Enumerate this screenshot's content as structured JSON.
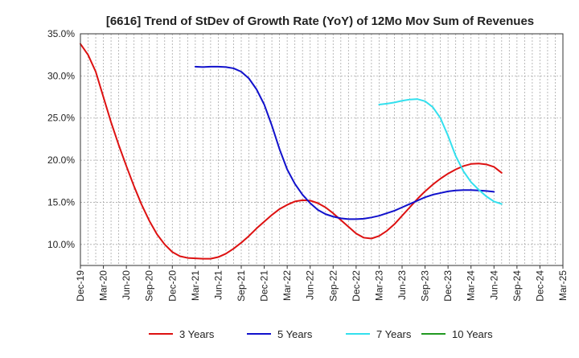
{
  "chart_data": {
    "type": "line",
    "title": "[6616]  Trend of StDev of Growth Rate (YoY) of 12Mo Mov Sum of Revenues",
    "xlabel": "",
    "ylabel": "",
    "ylim": [
      7.5,
      35.0
    ],
    "y_ticks": [
      10.0,
      15.0,
      20.0,
      25.0,
      30.0,
      35.0
    ],
    "y_tick_labels": [
      "10.0%",
      "15.0%",
      "20.0%",
      "25.0%",
      "30.0%",
      "35.0%"
    ],
    "x_tick_labels": [
      "Dec-19",
      "Mar-20",
      "Jun-20",
      "Sep-20",
      "Dec-20",
      "Mar-21",
      "Jun-21",
      "Sep-21",
      "Dec-21",
      "Mar-22",
      "Jun-22",
      "Sep-22",
      "Dec-22",
      "Mar-23",
      "Jun-23",
      "Sep-23",
      "Dec-23",
      "Mar-24",
      "Jun-24",
      "Sep-24",
      "Dec-24",
      "Mar-25"
    ],
    "grid": true,
    "legend_position": "bottom",
    "series": [
      {
        "name": "3 Years",
        "color": "#dd1111",
        "start_index": 0,
        "values": [
          33.8,
          32.5,
          30.5,
          27.5,
          24.5,
          21.8,
          19.3,
          16.9,
          14.7,
          12.8,
          11.2,
          10.0,
          9.1,
          8.6,
          8.4,
          8.35,
          8.3,
          8.3,
          8.5,
          8.9,
          9.5,
          10.2,
          11.0,
          11.9,
          12.7,
          13.5,
          14.2,
          14.7,
          15.1,
          15.25,
          15.2,
          14.9,
          14.4,
          13.7,
          12.9,
          12.1,
          11.3,
          10.8,
          10.7,
          11.0,
          11.6,
          12.4,
          13.4,
          14.4,
          15.4,
          16.3,
          17.1,
          17.8,
          18.4,
          18.9,
          19.3,
          19.55,
          19.6,
          19.5,
          19.2,
          18.5
        ]
      },
      {
        "name": "5 Years",
        "color": "#1111cc",
        "start_index": 15,
        "values": [
          31.1,
          31.05,
          31.1,
          31.1,
          31.05,
          30.9,
          30.5,
          29.7,
          28.4,
          26.6,
          24.1,
          21.3,
          18.9,
          17.2,
          15.9,
          14.9,
          14.1,
          13.6,
          13.3,
          13.1,
          13.0,
          13.0,
          13.05,
          13.2,
          13.4,
          13.7,
          14.0,
          14.4,
          14.8,
          15.2,
          15.6,
          15.9,
          16.1,
          16.3,
          16.4,
          16.45,
          16.45,
          16.4,
          16.35,
          16.25
        ]
      },
      {
        "name": "7 Years",
        "color": "#33e0ee",
        "start_index": 39,
        "values": [
          26.6,
          26.7,
          26.85,
          27.05,
          27.2,
          27.25,
          27.0,
          26.3,
          25.0,
          22.9,
          20.5,
          18.7,
          17.4,
          16.5,
          15.7,
          15.1,
          14.8
        ]
      },
      {
        "name": "10 Years",
        "color": "#229922",
        "start_index": 0,
        "values": []
      }
    ]
  }
}
